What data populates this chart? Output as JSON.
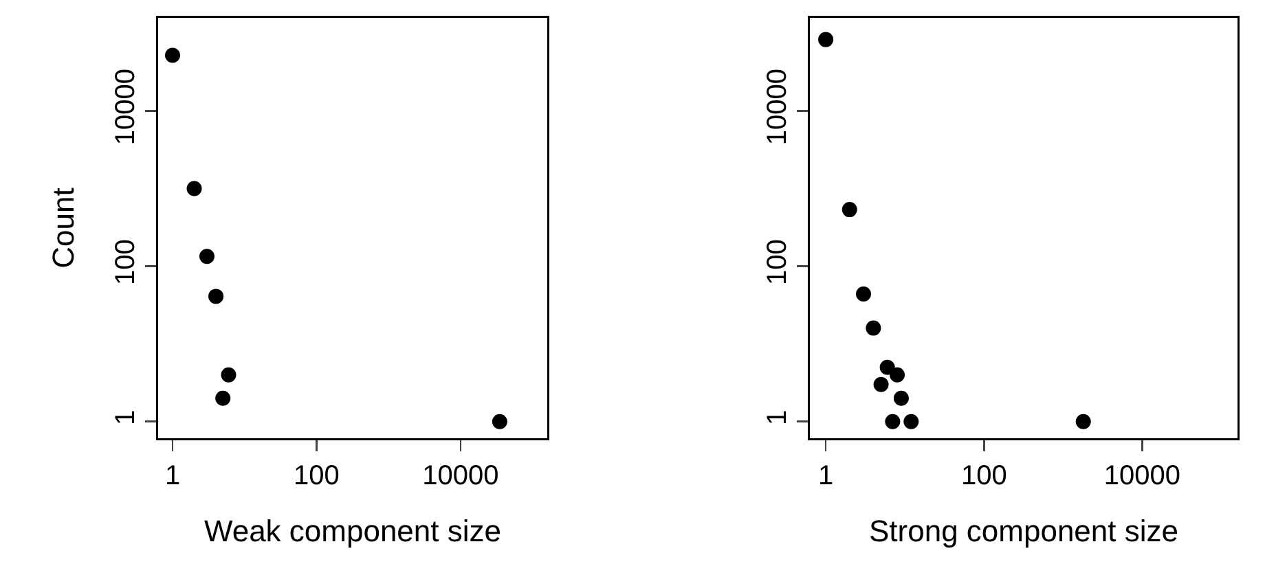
{
  "chart_data": [
    {
      "type": "scatter",
      "xlabel": "Weak component size",
      "ylabel": "Count",
      "x": [
        1,
        2,
        3,
        4,
        6,
        5,
        35000
      ],
      "values": [
        52000,
        1000,
        134,
        41,
        4,
        2,
        1
      ],
      "color": "#000000",
      "marker": "circle",
      "log": "xy",
      "grid": false,
      "xlim": [
        0.63,
        160000
      ],
      "ylim": [
        0.61,
        158000
      ],
      "xticks": [
        1,
        100,
        10000
      ],
      "yticks": [
        1,
        100,
        10000
      ]
    },
    {
      "type": "scatter",
      "xlabel": "Strong component size",
      "x": [
        1,
        2,
        3,
        4,
        6,
        5,
        8,
        9,
        7,
        12,
        1800
      ],
      "values": [
        83000,
        537,
        44,
        16,
        5,
        3,
        4,
        2,
        1,
        1,
        1
      ],
      "color": "#000000",
      "marker": "circle",
      "log": "xy",
      "grid": false,
      "xlim": [
        0.63,
        160000
      ],
      "ylim": [
        0.61,
        158000
      ],
      "xticks": [
        1,
        100,
        10000
      ],
      "yticks": [
        1,
        100,
        10000
      ]
    }
  ]
}
